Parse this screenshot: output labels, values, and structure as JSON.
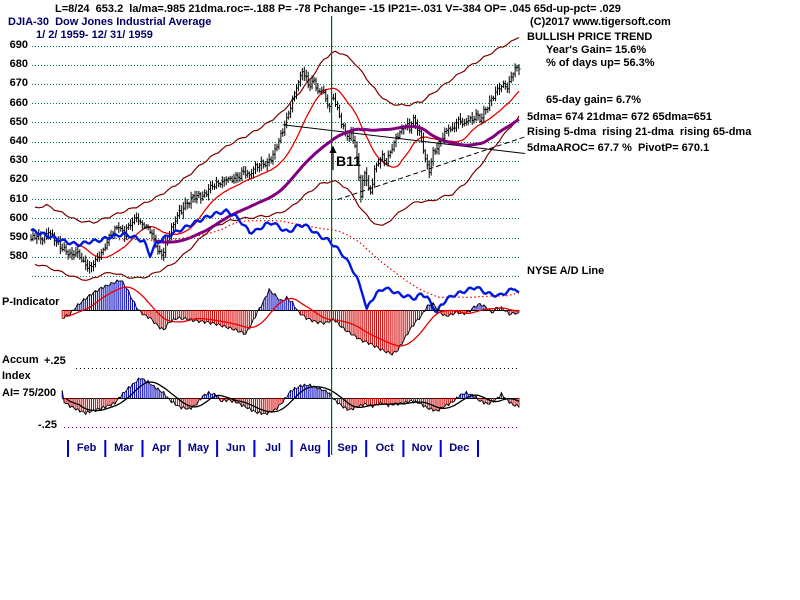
{
  "header": {
    "stats_line": "L=8/24  653.2  la/ma=.985 21dma.roc=-.188 P= -78 Pchange= -15 IP21=-.031 V=-384 OP= .045 65d-up-pct= .029",
    "title": "DJIA-30  Dow Jones Industrial Average",
    "copyright": "(C)2017 www.tigersoft.com"
  },
  "right_panel": {
    "trend": "BULLISH PRICE TREND",
    "years_gain": "Year's Gain= 15.6%",
    "days_up": "% of days up= 56.3%",
    "gain65": "65-day gain= 6.7%",
    "dma_line": "5dma= 674 21dma= 672 65dma=651",
    "rising_line": "Rising 5-dma  rising 21-dma  rising 65-dma",
    "aroc_line": "5dmaAROC= 67.7 %  PivotP= 670.1"
  },
  "annotations": {
    "date_range": "1/ 2/ 1959- 12/ 31/ 1959",
    "nyse_ad_label": "NYSE A/D Line",
    "p_indicator_label": "P-Indicator",
    "accum_label": "Accum",
    "accum_plus_label": "+.25",
    "accum_index_label": "Index",
    "accum_ai_label": "AI= 75/200",
    "accum_minus_label": "-.25"
  },
  "colors": {
    "grid_green": "#008040",
    "band_dark_red": "#7A0000",
    "ma21_red": "#E80000",
    "ma65_purple": "#800080",
    "ad_blue": "#0018DD",
    "pind_blue": "#0000C8",
    "pind_red": "#D80000",
    "signal_green": "#006600",
    "month_tick_blue": "#0000E0",
    "dotted_purple": "#A000A0"
  },
  "chart_data": {
    "type": "ohlc+indicator",
    "title": "DJIA-30 Dow Jones Industrial Average, 1/2/1959 - 12/31/1959, daily bars with 21/65-day averages, trading bands, NYSE A/D line, P-Indicator and Accumulation Index",
    "ylim": [
      565,
      695
    ],
    "y_ticks": [
      690,
      680,
      670,
      660,
      650,
      640,
      630,
      620,
      610,
      600,
      590,
      580
    ],
    "grid_levels": [
      690,
      680,
      670,
      660,
      650,
      640,
      630,
      620,
      610,
      600,
      590,
      580,
      570
    ],
    "months": [
      "Feb",
      "Mar",
      "Apr",
      "May",
      "Jun",
      "Jul",
      "Aug",
      "Sep",
      "Oct",
      "Nov",
      "Dec"
    ],
    "days": 250,
    "signal": {
      "label": "B11",
      "arrow_day": 154
    },
    "price_close_anchors": [
      [
        0,
        588
      ],
      [
        3,
        592
      ],
      [
        6,
        590
      ],
      [
        9,
        593
      ],
      [
        12,
        589
      ],
      [
        15,
        586
      ],
      [
        18,
        583
      ],
      [
        21,
        580
      ],
      [
        24,
        583
      ],
      [
        27,
        578
      ],
      [
        30,
        574
      ],
      [
        33,
        577
      ],
      [
        36,
        583
      ],
      [
        39,
        588
      ],
      [
        42,
        592
      ],
      [
        45,
        596
      ],
      [
        48,
        593
      ],
      [
        51,
        597
      ],
      [
        54,
        600
      ],
      [
        57,
        598
      ],
      [
        60,
        595
      ],
      [
        62,
        591
      ],
      [
        64,
        586
      ],
      [
        66,
        582
      ],
      [
        68,
        584
      ],
      [
        70,
        589
      ],
      [
        72,
        594
      ],
      [
        74,
        599
      ],
      [
        76,
        604
      ],
      [
        79,
        607
      ],
      [
        82,
        610
      ],
      [
        85,
        612
      ],
      [
        88,
        613
      ],
      [
        91,
        615
      ],
      [
        94,
        617
      ],
      [
        97,
        619
      ],
      [
        100,
        621
      ],
      [
        103,
        619
      ],
      [
        106,
        622
      ],
      [
        109,
        625
      ],
      [
        112,
        622
      ],
      [
        115,
        626
      ],
      [
        118,
        630
      ],
      [
        121,
        628
      ],
      [
        124,
        633
      ],
      [
        126,
        638
      ],
      [
        128,
        644
      ],
      [
        130,
        650
      ],
      [
        132,
        655
      ],
      [
        134,
        661
      ],
      [
        136,
        668
      ],
      [
        138,
        674
      ],
      [
        139,
        678
      ],
      [
        141,
        673
      ],
      [
        143,
        668
      ],
      [
        145,
        672
      ],
      [
        147,
        665
      ],
      [
        149,
        669
      ],
      [
        151,
        663
      ],
      [
        153,
        658
      ],
      [
        155,
        663
      ],
      [
        157,
        656
      ],
      [
        159,
        651
      ],
      [
        161,
        646
      ],
      [
        163,
        641
      ],
      [
        164,
        645
      ],
      [
        166,
        637
      ],
      [
        167,
        630
      ],
      [
        168,
        623
      ],
      [
        169,
        613
      ],
      [
        170,
        619
      ],
      [
        171,
        625
      ],
      [
        172,
        621
      ],
      [
        173,
        615
      ],
      [
        174,
        613
      ],
      [
        175,
        619
      ],
      [
        176,
        625
      ],
      [
        178,
        629
      ],
      [
        180,
        633
      ],
      [
        182,
        630
      ],
      [
        184,
        635
      ],
      [
        186,
        639
      ],
      [
        188,
        643
      ],
      [
        190,
        647
      ],
      [
        192,
        650
      ],
      [
        194,
        647
      ],
      [
        196,
        651
      ],
      [
        198,
        647
      ],
      [
        200,
        642
      ],
      [
        201,
        637
      ],
      [
        202,
        632
      ],
      [
        203,
        627
      ],
      [
        204,
        625
      ],
      [
        205,
        629
      ],
      [
        206,
        633
      ],
      [
        208,
        637
      ],
      [
        210,
        641
      ],
      [
        212,
        645
      ],
      [
        214,
        648
      ],
      [
        216,
        645
      ],
      [
        218,
        649
      ],
      [
        220,
        652
      ],
      [
        222,
        649
      ],
      [
        224,
        653
      ],
      [
        226,
        650
      ],
      [
        228,
        654
      ],
      [
        230,
        652
      ],
      [
        232,
        656
      ],
      [
        234,
        659
      ],
      [
        236,
        662
      ],
      [
        238,
        665
      ],
      [
        240,
        668
      ],
      [
        242,
        671
      ],
      [
        244,
        669
      ],
      [
        246,
        673
      ],
      [
        248,
        677
      ],
      [
        250,
        679
      ]
    ],
    "band_upper_anchors": [
      [
        0,
        605
      ],
      [
        8,
        607
      ],
      [
        16,
        603
      ],
      [
        24,
        599
      ],
      [
        32,
        598
      ],
      [
        40,
        601
      ],
      [
        48,
        604
      ],
      [
        56,
        607
      ],
      [
        64,
        611
      ],
      [
        72,
        616
      ],
      [
        80,
        622
      ],
      [
        88,
        629
      ],
      [
        96,
        635
      ],
      [
        104,
        640
      ],
      [
        112,
        644
      ],
      [
        120,
        649
      ],
      [
        128,
        655
      ],
      [
        136,
        664
      ],
      [
        144,
        674
      ],
      [
        150,
        683
      ],
      [
        155,
        687
      ],
      [
        160,
        686
      ],
      [
        166,
        681
      ],
      [
        172,
        673
      ],
      [
        178,
        665
      ],
      [
        184,
        660
      ],
      [
        192,
        659
      ],
      [
        200,
        661
      ],
      [
        208,
        667
      ],
      [
        216,
        673
      ],
      [
        224,
        679
      ],
      [
        232,
        684
      ],
      [
        240,
        689
      ],
      [
        246,
        692
      ],
      [
        250,
        695
      ]
    ],
    "band_lower_anchors": [
      [
        0,
        577
      ],
      [
        8,
        575
      ],
      [
        16,
        572
      ],
      [
        24,
        569
      ],
      [
        30,
        568
      ],
      [
        36,
        571
      ],
      [
        42,
        572
      ],
      [
        48,
        570
      ],
      [
        54,
        569
      ],
      [
        60,
        570
      ],
      [
        66,
        573
      ],
      [
        72,
        576
      ],
      [
        78,
        581
      ],
      [
        84,
        587
      ],
      [
        90,
        593
      ],
      [
        96,
        597
      ],
      [
        102,
        599
      ],
      [
        108,
        600
      ],
      [
        116,
        601
      ],
      [
        124,
        602
      ],
      [
        132,
        605
      ],
      [
        140,
        612
      ],
      [
        148,
        618
      ],
      [
        155,
        620
      ],
      [
        162,
        616
      ],
      [
        168,
        607
      ],
      [
        174,
        599
      ],
      [
        180,
        596
      ],
      [
        186,
        601
      ],
      [
        192,
        606
      ],
      [
        198,
        609
      ],
      [
        204,
        609
      ],
      [
        210,
        611
      ],
      [
        216,
        613
      ],
      [
        222,
        618
      ],
      [
        228,
        625
      ],
      [
        234,
        633
      ],
      [
        240,
        641
      ],
      [
        245,
        647
      ],
      [
        250,
        653
      ]
    ],
    "ad_line_anchors": [
      [
        0,
        594
      ],
      [
        6,
        592
      ],
      [
        12,
        590
      ],
      [
        18,
        588
      ],
      [
        24,
        586.5
      ],
      [
        30,
        588
      ],
      [
        36,
        589
      ],
      [
        42,
        591
      ],
      [
        48,
        592
      ],
      [
        54,
        590
      ],
      [
        58,
        588
      ],
      [
        61,
        581
      ],
      [
        64,
        587
      ],
      [
        68,
        590
      ],
      [
        72,
        592
      ],
      [
        76,
        594
      ],
      [
        82,
        597
      ],
      [
        88,
        600
      ],
      [
        94,
        602.5
      ],
      [
        100,
        604
      ],
      [
        104,
        602
      ],
      [
        108,
        598
      ],
      [
        112,
        593
      ],
      [
        116,
        594
      ],
      [
        120,
        597
      ],
      [
        124,
        598
      ],
      [
        128,
        595
      ],
      [
        132,
        593
      ],
      [
        136,
        596
      ],
      [
        140,
        597
      ],
      [
        144,
        594
      ],
      [
        148,
        591
      ],
      [
        152,
        589
      ],
      [
        156,
        585.5
      ],
      [
        160,
        581
      ],
      [
        164,
        575
      ],
      [
        167,
        569
      ],
      [
        170,
        561
      ],
      [
        172,
        552.5
      ],
      [
        174,
        557
      ],
      [
        177,
        561
      ],
      [
        181,
        564
      ],
      [
        185,
        562.5
      ],
      [
        189,
        560.5
      ],
      [
        193,
        559.5
      ],
      [
        197,
        558.5
      ],
      [
        200,
        561
      ],
      [
        203,
        559
      ],
      [
        206,
        554
      ],
      [
        208,
        551
      ],
      [
        210,
        555
      ],
      [
        213,
        558
      ],
      [
        216,
        560
      ],
      [
        220,
        561.5
      ],
      [
        224,
        563
      ],
      [
        228,
        564.5
      ],
      [
        232,
        562
      ],
      [
        236,
        560.5
      ],
      [
        240,
        560
      ],
      [
        244,
        562
      ],
      [
        248,
        564
      ],
      [
        250,
        561
      ]
    ],
    "p_indicator_anchors": [
      [
        16,
        -8
      ],
      [
        20,
        -4
      ],
      [
        23,
        3
      ],
      [
        27,
        10
      ],
      [
        31,
        16
      ],
      [
        36,
        22
      ],
      [
        42,
        27
      ],
      [
        46,
        30
      ],
      [
        49,
        22
      ],
      [
        52,
        10
      ],
      [
        55,
        0
      ],
      [
        58,
        -5
      ],
      [
        61,
        -8
      ],
      [
        65,
        -16
      ],
      [
        68,
        -20
      ],
      [
        71,
        -12
      ],
      [
        75,
        -8
      ],
      [
        80,
        -9
      ],
      [
        85,
        -11
      ],
      [
        90,
        -12
      ],
      [
        95,
        -14
      ],
      [
        100,
        -17
      ],
      [
        105,
        -20
      ],
      [
        110,
        -24
      ],
      [
        113,
        -14
      ],
      [
        116,
        -2
      ],
      [
        119,
        8
      ],
      [
        122,
        20
      ],
      [
        125,
        15
      ],
      [
        128,
        9
      ],
      [
        131,
        12
      ],
      [
        134,
        7
      ],
      [
        137,
        -2
      ],
      [
        141,
        -8
      ],
      [
        146,
        -12
      ],
      [
        151,
        -13
      ],
      [
        155,
        -9
      ],
      [
        158,
        -15
      ],
      [
        161,
        -20
      ],
      [
        165,
        -25
      ],
      [
        169,
        -30
      ],
      [
        173,
        -33
      ],
      [
        177,
        -37
      ],
      [
        181,
        -41
      ],
      [
        185,
        -44
      ],
      [
        188,
        -40
      ],
      [
        191,
        -30
      ],
      [
        194,
        -20
      ],
      [
        197,
        -12
      ],
      [
        200,
        -6
      ],
      [
        203,
        4
      ],
      [
        206,
        6
      ],
      [
        209,
        -1
      ],
      [
        212,
        -6
      ],
      [
        215,
        -5
      ],
      [
        218,
        -2
      ],
      [
        221,
        -4
      ],
      [
        224,
        -2
      ],
      [
        227,
        3
      ],
      [
        230,
        6
      ],
      [
        233,
        3
      ],
      [
        236,
        -3
      ],
      [
        239,
        3
      ],
      [
        242,
        1
      ],
      [
        245,
        -4
      ],
      [
        248,
        -3
      ],
      [
        250,
        -4
      ]
    ],
    "accum_anchors": [
      [
        16,
        6
      ],
      [
        17,
        -4
      ],
      [
        20,
        -8
      ],
      [
        24,
        -12
      ],
      [
        28,
        -15
      ],
      [
        33,
        -12
      ],
      [
        38,
        -9
      ],
      [
        43,
        -5
      ],
      [
        46,
        2
      ],
      [
        50,
        10
      ],
      [
        56,
        20
      ],
      [
        60,
        16
      ],
      [
        64,
        10
      ],
      [
        68,
        5
      ],
      [
        71,
        -2
      ],
      [
        76,
        -9
      ],
      [
        81,
        -11
      ],
      [
        85,
        -6
      ],
      [
        88,
        2
      ],
      [
        91,
        5
      ],
      [
        95,
        3
      ],
      [
        97,
        -3
      ],
      [
        101,
        -2
      ],
      [
        105,
        -4
      ],
      [
        110,
        -9
      ],
      [
        115,
        -14
      ],
      [
        120,
        -16
      ],
      [
        125,
        -12
      ],
      [
        129,
        -4
      ],
      [
        133,
        7
      ],
      [
        138,
        12
      ],
      [
        142,
        13
      ],
      [
        147,
        10
      ],
      [
        152,
        6
      ],
      [
        156,
        -3
      ],
      [
        160,
        -9
      ],
      [
        163,
        -12
      ],
      [
        167,
        -9
      ],
      [
        171,
        -6
      ],
      [
        175,
        -8
      ],
      [
        179,
        -5
      ],
      [
        183,
        -7
      ],
      [
        187,
        -6
      ],
      [
        191,
        -5
      ],
      [
        195,
        -3
      ],
      [
        199,
        -5
      ],
      [
        203,
        -10
      ],
      [
        208,
        -13
      ],
      [
        212,
        -8
      ],
      [
        216,
        -4
      ],
      [
        220,
        3
      ],
      [
        223,
        5
      ],
      [
        227,
        2
      ],
      [
        230,
        -3
      ],
      [
        234,
        -6
      ],
      [
        238,
        -2
      ],
      [
        241,
        4
      ],
      [
        244,
        -2
      ],
      [
        247,
        -7
      ],
      [
        250,
        -8
      ]
    ],
    "trendlines": [
      {
        "name": "descending-resistance",
        "d1": 129,
        "p1": 649,
        "d2": 253,
        "p2": 634,
        "style": "solid"
      },
      {
        "name": "ascending-support",
        "d1": 157,
        "p1": 610,
        "d2": 254,
        "p2": 643,
        "style": "dashed"
      }
    ],
    "indicator_levels": {
      "accum_plus": 0.25,
      "accum_minus": -0.25,
      "legend": "P-Indicator and Accum Index bars: blue above zero, red below zero"
    }
  }
}
